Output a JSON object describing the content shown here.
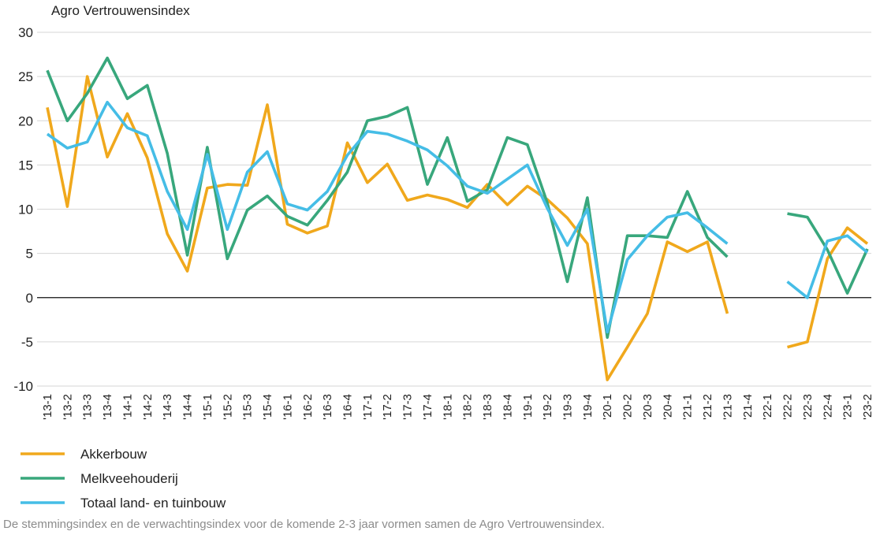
{
  "chart_data": {
    "type": "line",
    "ylabel": "Agro Vertrouwensindex",
    "xlabel": "",
    "ylim": [
      -10,
      30
    ],
    "yticks": [
      30,
      25,
      20,
      15,
      10,
      5,
      0,
      -5,
      -10
    ],
    "grid": true,
    "legend_position": "bottom-left",
    "categories": [
      "'13-1",
      "'13-2",
      "'13-3",
      "'13-4",
      "'14-1",
      "'14-2",
      "'14-3",
      "'14-4",
      "'15-1",
      "'15-2",
      "'15-3",
      "'15-4",
      "'16-1",
      "'16-2",
      "'16-3",
      "'16-4",
      "'17-1",
      "'17-2",
      "'17-3",
      "'17-4",
      "'18-1",
      "'18-2",
      "'18-3",
      "'18-4",
      "'19-1",
      "'19-2",
      "'19-3",
      "'19-4",
      "'20-1",
      "'20-2",
      "'20-3",
      "'20-4",
      "'21-1",
      "'21-2",
      "'21-3",
      "'21-4",
      "'22-1",
      "'22-2",
      "'22-3",
      "'22-4",
      "'23-1",
      "'23-2"
    ],
    "series": [
      {
        "name": "Akkerbouw",
        "color": "#f0a81c",
        "values": [
          21.5,
          10.3,
          25.0,
          15.9,
          20.8,
          15.8,
          7.2,
          3.0,
          12.4,
          12.8,
          12.7,
          21.8,
          8.3,
          7.3,
          8.1,
          17.5,
          13.0,
          15.1,
          11.0,
          11.6,
          11.1,
          10.2,
          12.8,
          10.5,
          12.6,
          11.1,
          9.0,
          6.1,
          -9.3,
          -5.6,
          -1.8,
          6.3,
          5.2,
          6.3,
          -1.8,
          null,
          null,
          -5.6,
          -5.0,
          4.4,
          7.9,
          6.1
        ]
      },
      {
        "name": "Melkveehouderij",
        "color": "#38a77c",
        "values": [
          25.7,
          20.0,
          23.1,
          27.1,
          22.5,
          24.0,
          16.3,
          4.8,
          17.0,
          4.4,
          9.9,
          11.5,
          9.2,
          8.2,
          11.0,
          14.2,
          20.0,
          20.5,
          21.5,
          12.8,
          18.1,
          10.9,
          12.2,
          18.1,
          17.3,
          10.7,
          1.8,
          11.3,
          -4.5,
          7.0,
          7.0,
          6.8,
          12.0,
          6.8,
          4.6,
          null,
          null,
          9.5,
          9.1,
          5.4,
          0.5,
          5.5
        ]
      },
      {
        "name": "Totaal land- en tuinbouw",
        "color": "#45bde6",
        "values": [
          18.5,
          16.9,
          17.6,
          22.1,
          19.2,
          18.3,
          12.0,
          7.7,
          16.2,
          7.7,
          14.2,
          16.5,
          10.6,
          9.9,
          12.0,
          16.1,
          18.8,
          18.5,
          17.7,
          16.7,
          14.9,
          12.6,
          11.8,
          13.4,
          15.0,
          10.1,
          5.9,
          10.0,
          -3.9,
          4.3,
          7.0,
          9.1,
          9.6,
          7.9,
          6.1,
          null,
          null,
          1.8,
          0.0,
          6.4,
          7.0,
          5.1
        ]
      }
    ]
  },
  "footnote": "De stemmingsindex en de verwachtingsindex voor de komende 2-3 jaar vormen samen de Agro Vertrouwensindex."
}
